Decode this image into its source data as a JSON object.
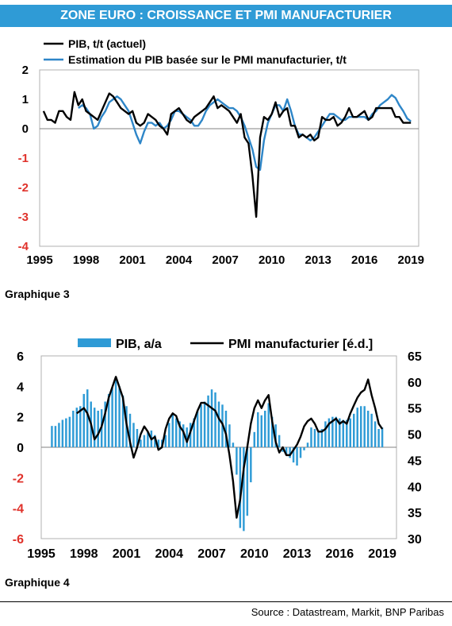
{
  "banner": {
    "title": "ZONE EURO : CROISSANCE ET PMI MANUFACTURIER"
  },
  "footer": {
    "source": "Source : Datastream, Markit, BNP Paribas"
  },
  "colors": {
    "banner_bg": "#2f9bd6",
    "actual_line": "#000000",
    "estimate_line": "#2e86c8",
    "bars": "#2f9bd6",
    "negative_tick": "#e0322b"
  },
  "chart_data": [
    {
      "caption": "Graphique 3",
      "type": "line",
      "ylim": [
        -4,
        2
      ],
      "y_ticks": [
        "2",
        "1",
        "0",
        "-1",
        "-2",
        "-3",
        "-4"
      ],
      "x_ticks": [
        "1995",
        "1998",
        "2001",
        "2004",
        "2007",
        "2010",
        "2013",
        "2016",
        "2019"
      ],
      "xlim": [
        1995,
        2019.5
      ],
      "legend_position": "top-left",
      "series": [
        {
          "name": "PIB, t/t (actuel)",
          "x": [
            1995.25,
            1995.5,
            1995.75,
            1996.0,
            1996.25,
            1996.5,
            1996.75,
            1997.0,
            1997.25,
            1997.5,
            1997.75,
            1998.0,
            1998.25,
            1998.5,
            1998.75,
            1999.0,
            1999.25,
            1999.5,
            1999.75,
            2000.0,
            2000.25,
            2000.5,
            2000.75,
            2001.0,
            2001.25,
            2001.5,
            2001.75,
            2002.0,
            2002.25,
            2002.5,
            2002.75,
            2003.0,
            2003.25,
            2003.5,
            2003.75,
            2004.0,
            2004.25,
            2004.5,
            2004.75,
            2005.0,
            2005.25,
            2005.5,
            2005.75,
            2006.0,
            2006.25,
            2006.5,
            2006.75,
            2007.0,
            2007.25,
            2007.5,
            2007.75,
            2008.0,
            2008.25,
            2008.5,
            2008.75,
            2009.0,
            2009.25,
            2009.5,
            2009.75,
            2010.0,
            2010.25,
            2010.5,
            2010.75,
            2011.0,
            2011.25,
            2011.5,
            2011.75,
            2012.0,
            2012.25,
            2012.5,
            2012.75,
            2013.0,
            2013.25,
            2013.5,
            2013.75,
            2014.0,
            2014.25,
            2014.5,
            2014.75,
            2015.0,
            2015.25,
            2015.5,
            2015.75,
            2016.0,
            2016.25,
            2016.5,
            2016.75,
            2017.0,
            2017.25,
            2017.5,
            2017.75,
            2018.0,
            2018.25,
            2018.5,
            2018.75,
            2019.0
          ],
          "values": [
            0.6,
            0.3,
            0.3,
            0.2,
            0.6,
            0.6,
            0.4,
            0.3,
            1.25,
            0.8,
            1.0,
            0.6,
            0.5,
            0.4,
            0.3,
            0.6,
            0.9,
            1.2,
            1.1,
            0.9,
            0.7,
            0.6,
            0.5,
            0.6,
            0.2,
            0.1,
            0.2,
            0.5,
            0.4,
            0.3,
            0.1,
            0.0,
            -0.2,
            0.5,
            0.6,
            0.7,
            0.5,
            0.3,
            0.2,
            0.4,
            0.5,
            0.6,
            0.7,
            0.9,
            1.1,
            0.7,
            0.8,
            0.7,
            0.6,
            0.4,
            0.2,
            0.5,
            -0.3,
            -0.5,
            -1.6,
            -3.0,
            -0.3,
            0.4,
            0.3,
            0.5,
            0.9,
            0.4,
            0.6,
            0.7,
            0.1,
            0.1,
            -0.3,
            -0.2,
            -0.3,
            -0.2,
            -0.4,
            -0.3,
            0.4,
            0.3,
            0.3,
            0.4,
            0.1,
            0.2,
            0.4,
            0.7,
            0.4,
            0.4,
            0.5,
            0.6,
            0.3,
            0.4,
            0.7,
            0.7,
            0.7,
            0.7,
            0.7,
            0.4,
            0.4,
            0.2,
            0.2,
            0.2
          ]
        },
        {
          "name": "Estimation du PIB basée sur le PMI  manufacturier, t/t",
          "x": [
            1997.5,
            1997.75,
            1998.0,
            1998.25,
            1998.5,
            1998.75,
            1999.0,
            1999.25,
            1999.5,
            1999.75,
            2000.0,
            2000.25,
            2000.5,
            2000.75,
            2001.0,
            2001.25,
            2001.5,
            2001.75,
            2002.0,
            2002.25,
            2002.5,
            2002.75,
            2003.0,
            2003.25,
            2003.5,
            2003.75,
            2004.0,
            2004.25,
            2004.5,
            2004.75,
            2005.0,
            2005.25,
            2005.5,
            2005.75,
            2006.0,
            2006.25,
            2006.5,
            2006.75,
            2007.0,
            2007.25,
            2007.5,
            2007.75,
            2008.0,
            2008.25,
            2008.5,
            2008.75,
            2009.0,
            2009.25,
            2009.5,
            2009.75,
            2010.0,
            2010.25,
            2010.5,
            2010.75,
            2011.0,
            2011.25,
            2011.5,
            2011.75,
            2012.0,
            2012.25,
            2012.5,
            2012.75,
            2013.0,
            2013.25,
            2013.5,
            2013.75,
            2014.0,
            2014.25,
            2014.5,
            2014.75,
            2015.0,
            2015.25,
            2015.5,
            2015.75,
            2016.0,
            2016.25,
            2016.5,
            2016.75,
            2017.0,
            2017.25,
            2017.5,
            2017.75,
            2018.0,
            2018.25,
            2018.5,
            2018.75,
            2019.0
          ],
          "values": [
            0.7,
            0.8,
            0.7,
            0.5,
            0.0,
            0.1,
            0.4,
            0.6,
            0.9,
            1.0,
            1.1,
            1.0,
            0.8,
            0.6,
            0.2,
            -0.2,
            -0.5,
            -0.1,
            0.2,
            0.2,
            0.1,
            0.2,
            0.0,
            0.1,
            0.3,
            0.6,
            0.6,
            0.5,
            0.4,
            0.3,
            0.1,
            0.1,
            0.3,
            0.6,
            0.8,
            0.9,
            1.0,
            0.9,
            0.8,
            0.7,
            0.7,
            0.6,
            0.4,
            0.1,
            -0.3,
            -0.7,
            -1.3,
            -1.4,
            -0.4,
            0.2,
            0.5,
            0.8,
            0.8,
            0.6,
            1.0,
            0.6,
            0.1,
            -0.2,
            -0.2,
            -0.3,
            -0.4,
            -0.3,
            -0.1,
            0.1,
            0.3,
            0.5,
            0.5,
            0.4,
            0.3,
            0.3,
            0.4,
            0.4,
            0.4,
            0.4,
            0.4,
            0.3,
            0.5,
            0.6,
            0.8,
            0.9,
            1.0,
            1.15,
            1.05,
            0.8,
            0.6,
            0.35,
            0.25
          ]
        }
      ]
    },
    {
      "caption": "Graphique 4",
      "type": "bar",
      "ylim": [
        -6,
        6
      ],
      "y2lim": [
        30,
        65
      ],
      "y_ticks": [
        "6",
        "4",
        "2",
        "0",
        "-2",
        "-4",
        "-6"
      ],
      "y2_ticks": [
        "65",
        "60",
        "55",
        "50",
        "45",
        "40",
        "35",
        "30"
      ],
      "x_ticks": [
        "1995",
        "1998",
        "2001",
        "2004",
        "2007",
        "2010",
        "2013",
        "2016",
        "2019"
      ],
      "xlim": [
        1995,
        2020
      ],
      "legend_position": "top",
      "series": [
        {
          "name": "PIB, a/a",
          "type": "bar",
          "x": [
            1995.75,
            1996.0,
            1996.25,
            1996.5,
            1996.75,
            1997.0,
            1997.25,
            1997.5,
            1997.75,
            1998.0,
            1998.25,
            1998.5,
            1998.75,
            1999.0,
            1999.25,
            1999.5,
            1999.75,
            2000.0,
            2000.25,
            2000.5,
            2000.75,
            2001.0,
            2001.25,
            2001.5,
            2001.75,
            2002.0,
            2002.25,
            2002.5,
            2002.75,
            2003.0,
            2003.25,
            2003.5,
            2003.75,
            2004.0,
            2004.25,
            2004.5,
            2004.75,
            2005.0,
            2005.25,
            2005.5,
            2005.75,
            2006.0,
            2006.25,
            2006.5,
            2006.75,
            2007.0,
            2007.25,
            2007.5,
            2007.75,
            2008.0,
            2008.25,
            2008.5,
            2008.75,
            2009.0,
            2009.25,
            2009.5,
            2009.75,
            2010.0,
            2010.25,
            2010.5,
            2010.75,
            2011.0,
            2011.25,
            2011.5,
            2011.75,
            2012.0,
            2012.25,
            2012.5,
            2012.75,
            2013.0,
            2013.25,
            2013.5,
            2013.75,
            2014.0,
            2014.25,
            2014.5,
            2014.75,
            2015.0,
            2015.25,
            2015.5,
            2015.75,
            2016.0,
            2016.25,
            2016.5,
            2016.75,
            2017.0,
            2017.25,
            2017.5,
            2017.75,
            2018.0,
            2018.25,
            2018.5,
            2018.75,
            2019.0
          ],
          "values": [
            1.4,
            1.4,
            1.6,
            1.8,
            1.9,
            2.0,
            2.4,
            2.6,
            2.7,
            3.5,
            3.8,
            3.0,
            2.6,
            2.4,
            2.5,
            3.0,
            3.5,
            3.9,
            4.5,
            4.0,
            3.4,
            2.7,
            2.2,
            1.6,
            1.2,
            0.5,
            0.8,
            1.0,
            1.1,
            0.8,
            0.5,
            0.5,
            0.8,
            1.6,
            2.2,
            1.9,
            1.7,
            1.5,
            1.3,
            1.6,
            1.9,
            2.4,
            2.8,
            3.0,
            3.4,
            3.8,
            3.6,
            3.0,
            2.8,
            2.4,
            1.5,
            0.3,
            -1.8,
            -5.3,
            -5.5,
            -4.5,
            -2.3,
            1.0,
            2.3,
            2.1,
            2.4,
            2.9,
            2.0,
            1.5,
            0.8,
            -0.3,
            -0.5,
            -0.7,
            -1.0,
            -1.2,
            -0.7,
            -0.2,
            0.3,
            1.3,
            1.2,
            1.0,
            1.2,
            1.7,
            1.9,
            2.0,
            2.0,
            1.9,
            1.8,
            1.8,
            1.9,
            2.2,
            2.6,
            2.7,
            2.7,
            2.4,
            2.2,
            1.7,
            1.2,
            1.3
          ]
        },
        {
          "name": "PMI manufacturier [é.d.]",
          "type": "line",
          "axis": "right",
          "x": [
            1997.5,
            1997.75,
            1998.0,
            1998.25,
            1998.5,
            1998.75,
            1999.0,
            1999.25,
            1999.5,
            1999.75,
            2000.0,
            2000.25,
            2000.5,
            2000.75,
            2001.0,
            2001.25,
            2001.5,
            2001.75,
            2002.0,
            2002.25,
            2002.5,
            2002.75,
            2003.0,
            2003.25,
            2003.5,
            2003.75,
            2004.0,
            2004.25,
            2004.5,
            2004.75,
            2005.0,
            2005.25,
            2005.5,
            2005.75,
            2006.0,
            2006.25,
            2006.5,
            2006.75,
            2007.0,
            2007.25,
            2007.5,
            2007.75,
            2008.0,
            2008.25,
            2008.5,
            2008.75,
            2009.0,
            2009.25,
            2009.5,
            2009.75,
            2010.0,
            2010.25,
            2010.5,
            2010.75,
            2011.0,
            2011.25,
            2011.5,
            2011.75,
            2012.0,
            2012.25,
            2012.5,
            2012.75,
            2013.0,
            2013.25,
            2013.5,
            2013.75,
            2014.0,
            2014.25,
            2014.5,
            2014.75,
            2015.0,
            2015.25,
            2015.5,
            2015.75,
            2016.0,
            2016.25,
            2016.5,
            2016.75,
            2017.0,
            2017.25,
            2017.5,
            2017.75,
            2018.0,
            2018.25,
            2018.5,
            2018.75,
            2019.0
          ],
          "values": [
            54.0,
            54.5,
            55.0,
            54.0,
            52.0,
            49.0,
            50.0,
            51.5,
            54.0,
            57.0,
            59.0,
            61.0,
            59.0,
            57.0,
            52.0,
            48.5,
            45.5,
            47.5,
            50.0,
            51.5,
            50.5,
            49.0,
            49.5,
            47.0,
            47.5,
            51.0,
            53.0,
            54.0,
            53.5,
            51.5,
            50.5,
            48.5,
            50.5,
            52.5,
            54.5,
            56.0,
            56.0,
            55.5,
            55.0,
            54.5,
            53.0,
            52.0,
            50.0,
            46.0,
            41.0,
            34.0,
            37.5,
            43.5,
            47.5,
            52.0,
            55.0,
            56.5,
            55.0,
            56.5,
            57.5,
            52.5,
            48.5,
            46.5,
            47.5,
            46.0,
            46.0,
            47.0,
            48.0,
            49.5,
            51.5,
            52.5,
            53.0,
            52.0,
            50.5,
            50.5,
            51.0,
            52.0,
            52.5,
            53.0,
            52.0,
            52.5,
            52.0,
            54.0,
            55.5,
            57.0,
            58.0,
            58.5,
            60.5,
            57.5,
            55.0,
            52.0,
            51.0
          ]
        }
      ]
    }
  ]
}
